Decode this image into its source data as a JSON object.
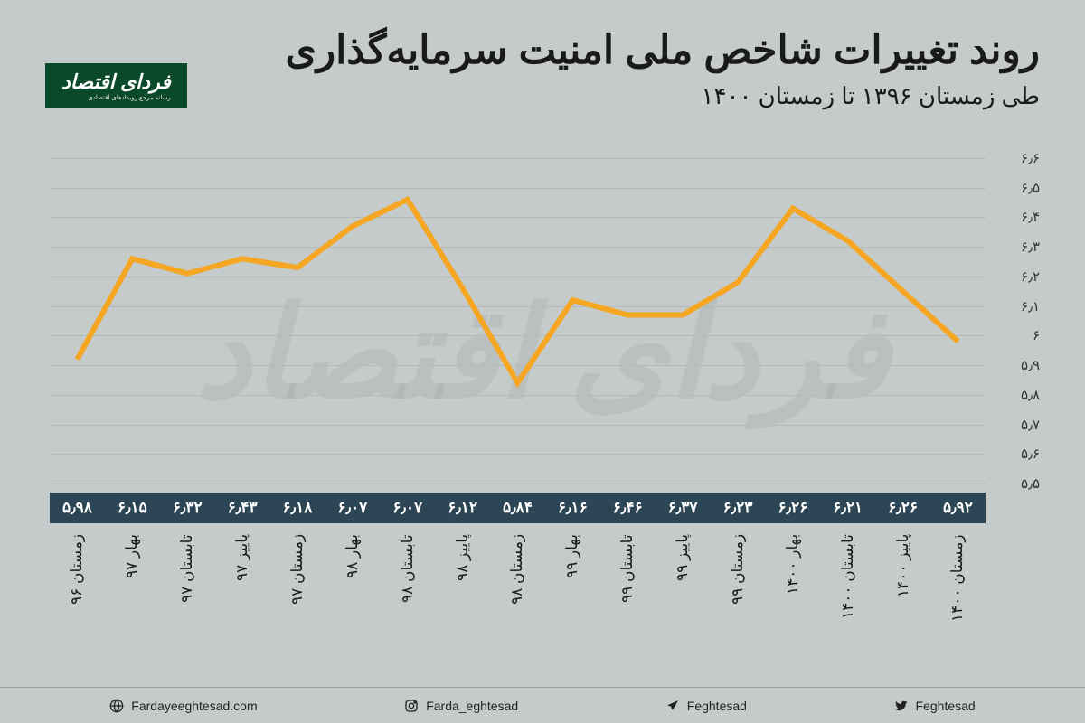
{
  "header": {
    "title": "روند تغییرات شاخص ملی امنیت سرمایه‌گذاری",
    "subtitle": "طی زمستان ۱۳۹۶ تا زمستان ۱۴۰۰",
    "logo_text": "فردای اقتصاد",
    "logo_sub": "رسانه مرجع رویدادهای اقتصادی"
  },
  "chart": {
    "type": "line",
    "ymin": 5.5,
    "ymax": 6.6,
    "ytick_step": 0.1,
    "yticks": [
      "۵٫۵",
      "۵٫۶",
      "۵٫۷",
      "۵٫۸",
      "۵٫۹",
      "۶",
      "۶٫۱",
      "۶٫۲",
      "۶٫۳",
      "۶٫۴",
      "۶٫۵",
      "۶٫۶"
    ],
    "line_color": "#f5a623",
    "line_width": 6,
    "grid_color": "#b4baba",
    "background_color": "#c5cbcb",
    "value_box_bg": "#2d4656",
    "value_box_fg": "#ffffff",
    "points": [
      {
        "label": "زمستان ۹۶",
        "value": 5.98,
        "value_label": "۵٫۹۸"
      },
      {
        "label": "بهار ۹۷",
        "value": 6.15,
        "value_label": "۶٫۱۵"
      },
      {
        "label": "تابستان ۹۷",
        "value": 6.32,
        "value_label": "۶٫۳۲"
      },
      {
        "label": "پاییز ۹۷",
        "value": 6.43,
        "value_label": "۶٫۴۳"
      },
      {
        "label": "زمستان ۹۷",
        "value": 6.18,
        "value_label": "۶٫۱۸"
      },
      {
        "label": "بهار ۹۸",
        "value": 6.07,
        "value_label": "۶٫۰۷"
      },
      {
        "label": "تابستان ۹۸",
        "value": 6.07,
        "value_label": "۶٫۰۷"
      },
      {
        "label": "پاییز ۹۸",
        "value": 6.12,
        "value_label": "۶٫۱۲"
      },
      {
        "label": "زمستان ۹۸",
        "value": 5.84,
        "value_label": "۵٫۸۴"
      },
      {
        "label": "بهار ۹۹",
        "value": 6.16,
        "value_label": "۶٫۱۶"
      },
      {
        "label": "تابستان ۹۹",
        "value": 6.46,
        "value_label": "۶٫۴۶"
      },
      {
        "label": "پاییز ۹۹",
        "value": 6.37,
        "value_label": "۶٫۳۷"
      },
      {
        "label": "زمستان ۹۹",
        "value": 6.23,
        "value_label": "۶٫۲۳"
      },
      {
        "label": "بهار ۱۴۰۰",
        "value": 6.26,
        "value_label": "۶٫۲۶"
      },
      {
        "label": "تابستان ۱۴۰۰",
        "value": 6.21,
        "value_label": "۶٫۲۱"
      },
      {
        "label": "پاییز ۱۴۰۰",
        "value": 6.26,
        "value_label": "۶٫۲۶"
      },
      {
        "label": "زمستان ۱۴۰۰",
        "value": 5.92,
        "value_label": "۵٫۹۲"
      }
    ]
  },
  "watermark": "فردای اقتصاد",
  "footer": {
    "socials": [
      {
        "icon": "globe",
        "text": "Fardayeeghtesad.com"
      },
      {
        "icon": "instagram",
        "text": "Farda_eghtesad"
      },
      {
        "icon": "telegram",
        "text": "Feghtesad"
      },
      {
        "icon": "twitter",
        "text": "Feghtesad"
      }
    ]
  }
}
